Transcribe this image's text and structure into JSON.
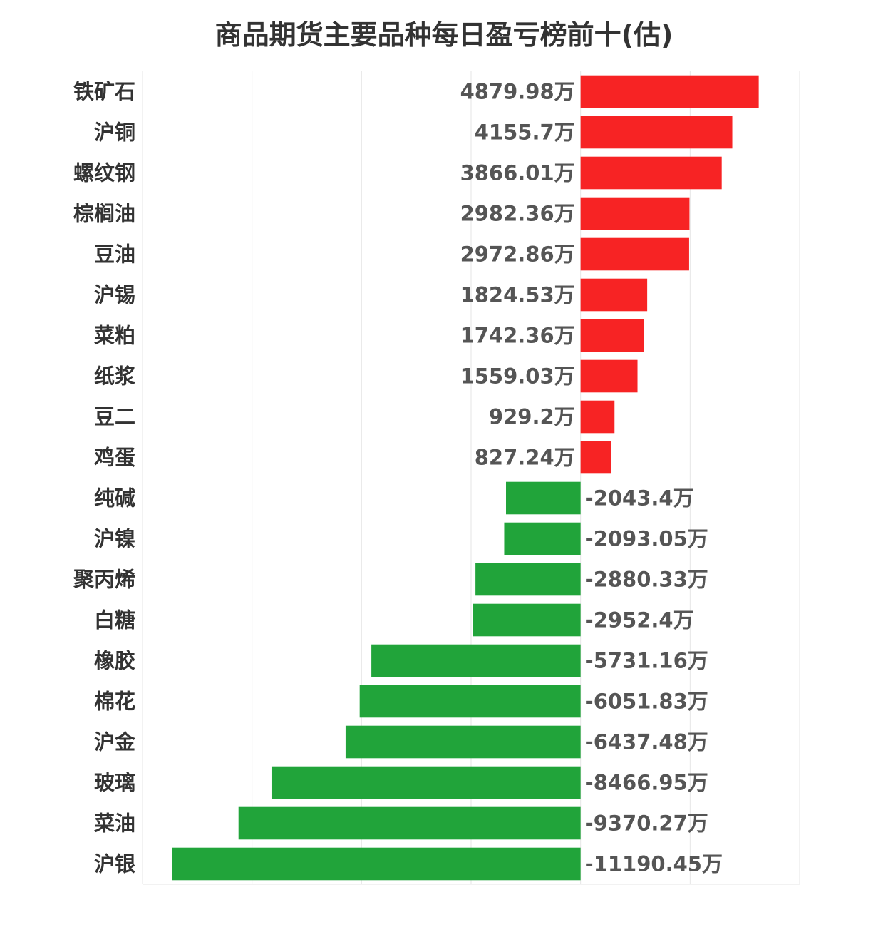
{
  "chart_data": {
    "type": "bar",
    "orientation": "horizontal",
    "title": "商品期货主要品种每日盈亏榜前十(估)",
    "categories": [
      "铁矿石",
      "沪铜",
      "螺纹钢",
      "棕榈油",
      "豆油",
      "沪锡",
      "菜粕",
      "纸浆",
      "豆二",
      "鸡蛋",
      "纯碱",
      "沪镍",
      "聚丙烯",
      "白糖",
      "橡胶",
      "棉花",
      "沪金",
      "玻璃",
      "菜油",
      "沪银"
    ],
    "values": [
      4879.98,
      4155.7,
      3866.01,
      2982.36,
      2972.86,
      1824.53,
      1742.36,
      1559.03,
      929.2,
      827.24,
      -2043.4,
      -2093.05,
      -2880.33,
      -2952.4,
      -5731.16,
      -6051.83,
      -6437.48,
      -8466.95,
      -9370.27,
      -11190.45
    ],
    "labels": [
      "4879.98万",
      "4155.7万",
      "3866.01万",
      "2982.36万",
      "2972.86万",
      "1824.53万",
      "1742.36万",
      "1559.03万",
      "929.2万",
      "827.24万",
      "-2043.4万",
      "-2093.05万",
      "-2880.33万",
      "-2952.4万",
      "-5731.16万",
      "-6051.83万",
      "-6437.48万",
      "-8466.95万",
      "-9370.27万",
      "-11190.45万"
    ],
    "xlim": [
      -12000,
      6000
    ],
    "grid": true,
    "colors": {
      "positive": "#f72324",
      "negative": "#21a43a",
      "grid": "#e6e6e6"
    }
  }
}
